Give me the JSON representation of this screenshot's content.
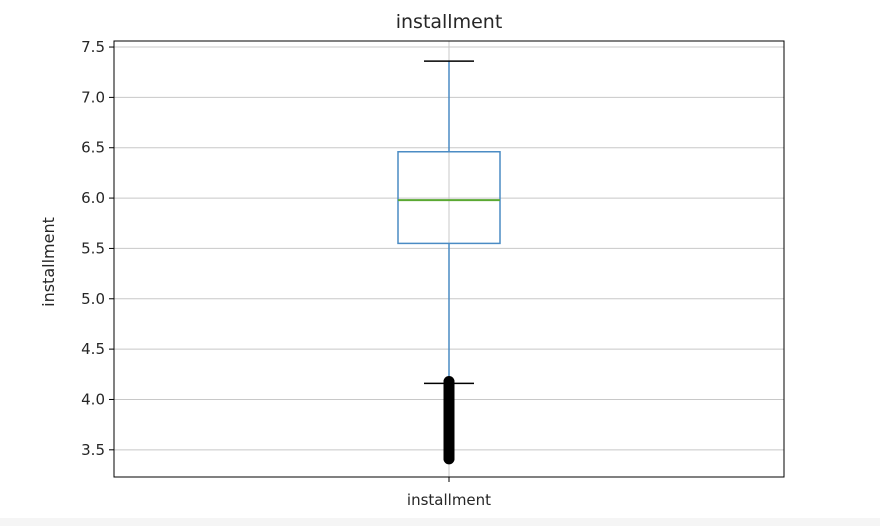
{
  "chart_data": {
    "type": "box",
    "title": "installment",
    "xlabel": "",
    "ylabel": "installment",
    "categories": [
      "installment"
    ],
    "ylim": [
      3.23,
      7.56
    ],
    "yticks": [
      "3.5",
      "4.0",
      "4.5",
      "5.0",
      "5.5",
      "6.0",
      "6.5",
      "7.0",
      "7.5"
    ],
    "grid": true,
    "box": {
      "whisker_low": 4.16,
      "q1": 5.55,
      "median": 5.98,
      "q3": 6.46,
      "whisker_high": 7.36,
      "outliers_min": 3.41,
      "outliers_max": 4.18
    },
    "colors": {
      "box": "#4a8bc4",
      "median": "#5aa832",
      "grid": "#c8c8c8",
      "outlier": "#000000",
      "whisker_cap": "#000000"
    }
  }
}
